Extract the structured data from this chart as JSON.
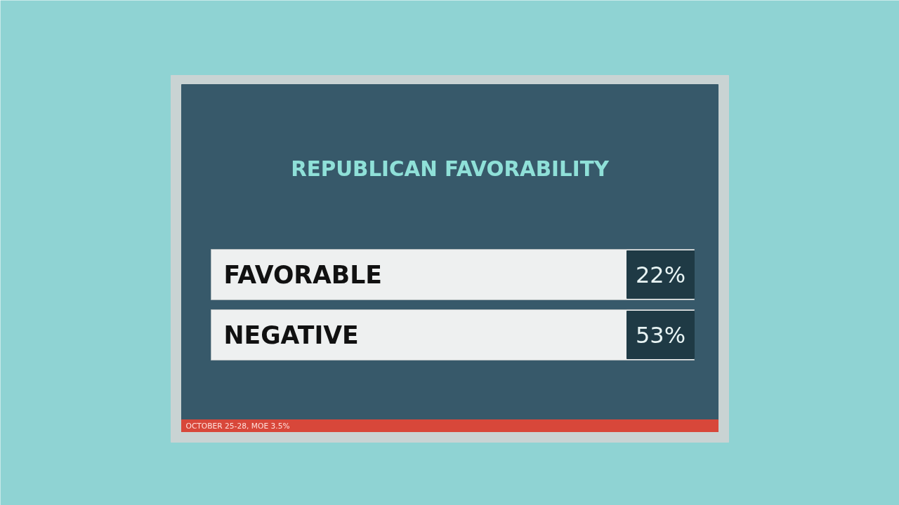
{
  "chart_data": {
    "type": "other",
    "title": "REPUBLICAN FAVORABILITY",
    "categories": [
      "FAVORABLE",
      "NEGATIVE"
    ],
    "values": [
      22,
      53
    ],
    "value_labels": [
      "22%",
      "53%"
    ],
    "annotations": [
      "OCTOBER 25-28, MOE 3.5%"
    ]
  }
}
